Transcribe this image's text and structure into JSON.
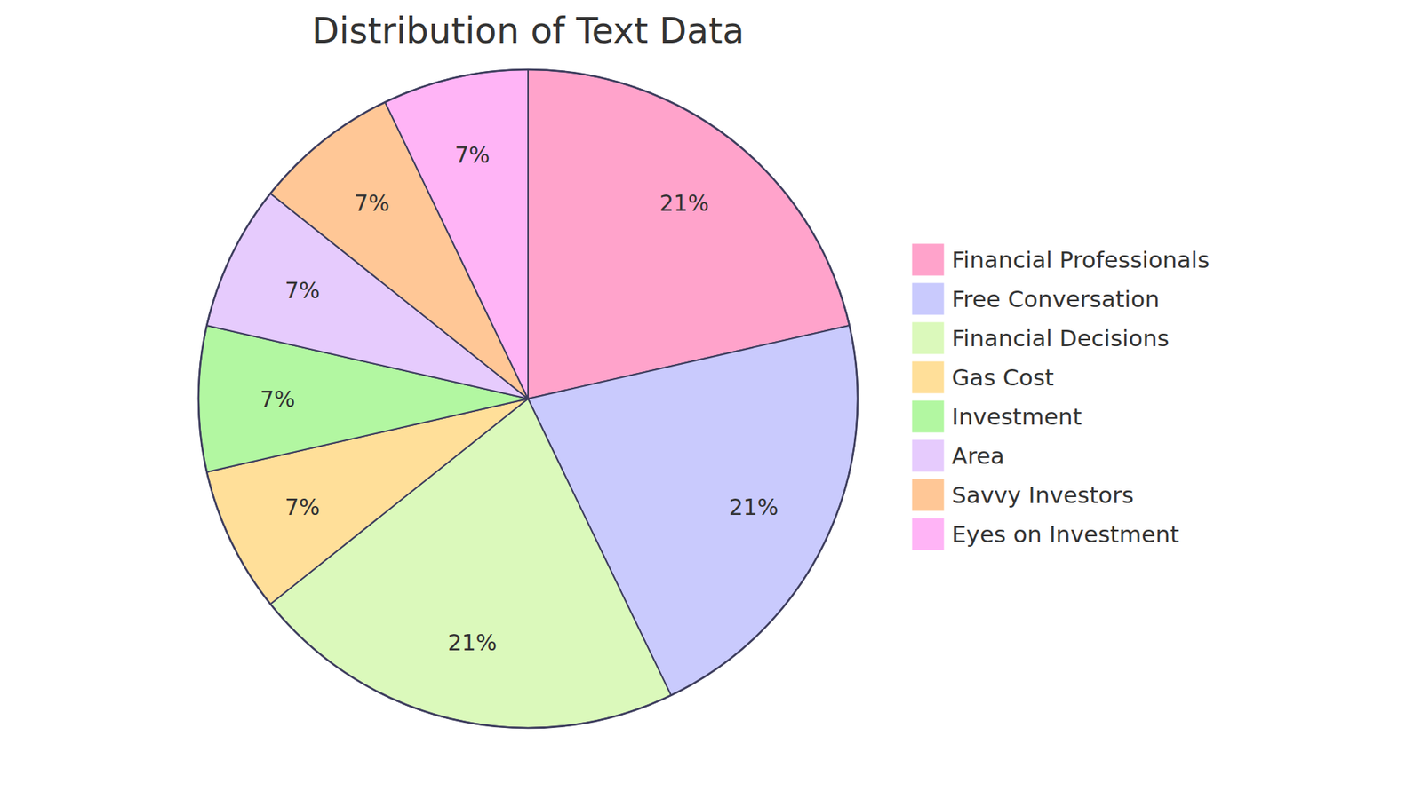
{
  "chart_data": {
    "type": "pie",
    "title": "Distribution of Text Data",
    "categories": [
      "Financial Professionals",
      "Free Conversation",
      "Financial Decisions",
      "Gas Cost",
      "Investment",
      "Area",
      "Savvy Investors",
      "Eyes on Investment"
    ],
    "values": [
      21,
      21,
      21,
      7,
      7,
      7,
      7,
      7
    ],
    "value_labels": [
      "21%",
      "21%",
      "21%",
      "7%",
      "7%",
      "7%",
      "7%",
      "7%"
    ],
    "colors": [
      "#ffa3cb",
      "#c9cafd",
      "#dbf9bb",
      "#ffdf99",
      "#b2f7a1",
      "#e6cbfd",
      "#ffc796",
      "#ffb4f6"
    ],
    "data_labels": true,
    "legend": "right"
  }
}
